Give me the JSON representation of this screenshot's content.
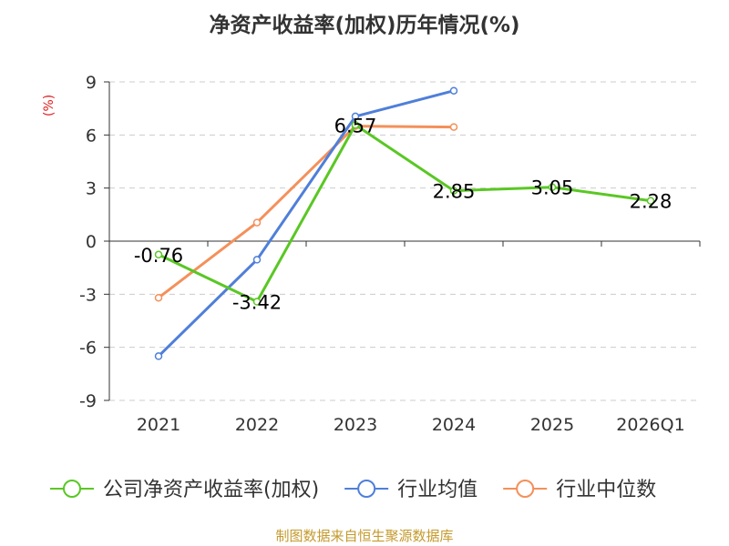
{
  "chart_data": {
    "type": "line",
    "title": "净资产收益率(加权)历年情况(%)",
    "ylabel": "(%)",
    "xlabel": "",
    "categories": [
      "2021",
      "2022",
      "2023",
      "2024",
      "2025",
      "2026Q1"
    ],
    "yticks": [
      9,
      6,
      3,
      0,
      -3,
      -6,
      -9
    ],
    "ylim": [
      -9,
      9
    ],
    "grid": true,
    "legend": "bottom",
    "series": [
      {
        "name": "公司净资产收益率(加权)",
        "values": [
          -0.76,
          -3.42,
          6.57,
          2.85,
          3.05,
          2.28
        ],
        "labels": [
          "-0.76",
          "-3.42",
          "6.57",
          "2.85",
          "3.05",
          "2.28"
        ],
        "color": "#5ac724"
      },
      {
        "name": "行业均值",
        "values": [
          -6.5,
          -1.05,
          7.05,
          8.5,
          null,
          null
        ],
        "color": "#4f7fd9"
      },
      {
        "name": "行业中位数",
        "values": [
          -3.2,
          1.05,
          6.5,
          6.45,
          null,
          null
        ],
        "color": "#f4905a"
      }
    ]
  },
  "footer": {
    "source": "制图数据来自恒生聚源数据库",
    "color": "#c49a2c"
  },
  "unit_color": "#e02020"
}
